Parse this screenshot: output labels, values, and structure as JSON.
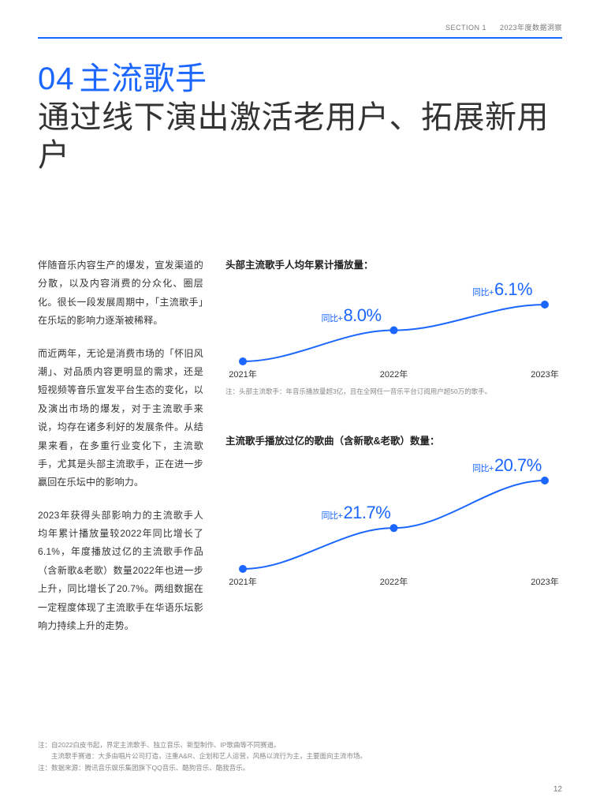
{
  "colors": {
    "accent": "#1a66ff",
    "rule": "#1a66ff",
    "title_dark": "#333333",
    "body_text": "#333333",
    "muted": "#888888",
    "marker_fill": "#1a66ff",
    "line_stroke": "#1a66ff",
    "background": "#ffffff"
  },
  "header": {
    "section": "SECTION 1",
    "subtitle": "2023年度数据洞察"
  },
  "title": {
    "number": "04",
    "headline_accent": "主流歌手",
    "headline_rest": "通过线下演出激活老用户、拓展新用户"
  },
  "body": {
    "p1": "伴随音乐内容生产的爆发，宣发渠道的分散，以及内容消费的分众化、圈层化。很长一段发展周期中，「主流歌手」在乐坛的影响力逐渐被稀释。",
    "p2": "而近两年，无论是消费市场的「怀旧风潮」、对品质内容更明显的需求，还是短视频等音乐宣发平台生态的变化，以及演出市场的爆发，对于主流歌手来说，均存在诸多利好的发展条件。从结果来看，在多重行业变化下，主流歌手，尤其是头部主流歌手，正在进一步赢回在乐坛中的影响力。",
    "p3": "2023年获得头部影响力的主流歌手人均年累计播放量较2022年同比增长了6.1%，年度播放过亿的主流歌手作品（含新歌&老歌）数量2022年也进一步上升，同比增长了20.7%。两组数据在一定程度体现了主流歌手在华语乐坛影响力持续上升的走势。"
  },
  "chart1": {
    "type": "line",
    "title": "头部主流歌手人均年累计播放量：",
    "x_labels": [
      "2021年",
      "2022年",
      "2023年"
    ],
    "y_values": [
      100,
      108.0,
      114.6
    ],
    "pct_labels": [
      {
        "prefix": "同比+",
        "value": "8.0%",
        "attach_index": 1
      },
      {
        "prefix": "同比+",
        "value": "6.1%",
        "attach_index": 2
      }
    ],
    "line_color": "#1a66ff",
    "line_width": 2,
    "marker_radius": 5,
    "marker_color": "#1a66ff",
    "label_color": "#1a66ff",
    "pct_fontsize": 22,
    "prefix_fontsize": 11,
    "axis_fontsize": 11,
    "note": "注：头部主流歌手：年音乐播放量超3亿，且在全网任一音乐平台订阅用户超50万的歌手。"
  },
  "chart2": {
    "type": "line",
    "title": "主流歌手播放过亿的歌曲（含新歌&老歌）数量：",
    "x_labels": [
      "2021年",
      "2022年",
      "2023年"
    ],
    "y_values": [
      100,
      121.7,
      146.9
    ],
    "pct_labels": [
      {
        "prefix": "同比+",
        "value": "21.7%",
        "attach_index": 1
      },
      {
        "prefix": "同比+",
        "value": "20.7%",
        "attach_index": 2
      }
    ],
    "line_color": "#1a66ff",
    "line_width": 2,
    "marker_radius": 5,
    "marker_color": "#1a66ff",
    "label_color": "#1a66ff",
    "pct_fontsize": 22,
    "prefix_fontsize": 11,
    "axis_fontsize": 11
  },
  "footnotes": {
    "f1": "注：自2022白皮书起，界定主流歌手、独立音乐、新型制作、IP歌曲等不同赛道。",
    "f2": "　　主流歌手赛道：大多由唱片公司打造，注重A&R、企划和艺人运营，风格以流行为主，主要面向主流市场。",
    "f3": "注：数据来源：腾讯音乐娱乐集团旗下QQ音乐、酷狗音乐、酷我音乐。"
  },
  "page_number": "12"
}
